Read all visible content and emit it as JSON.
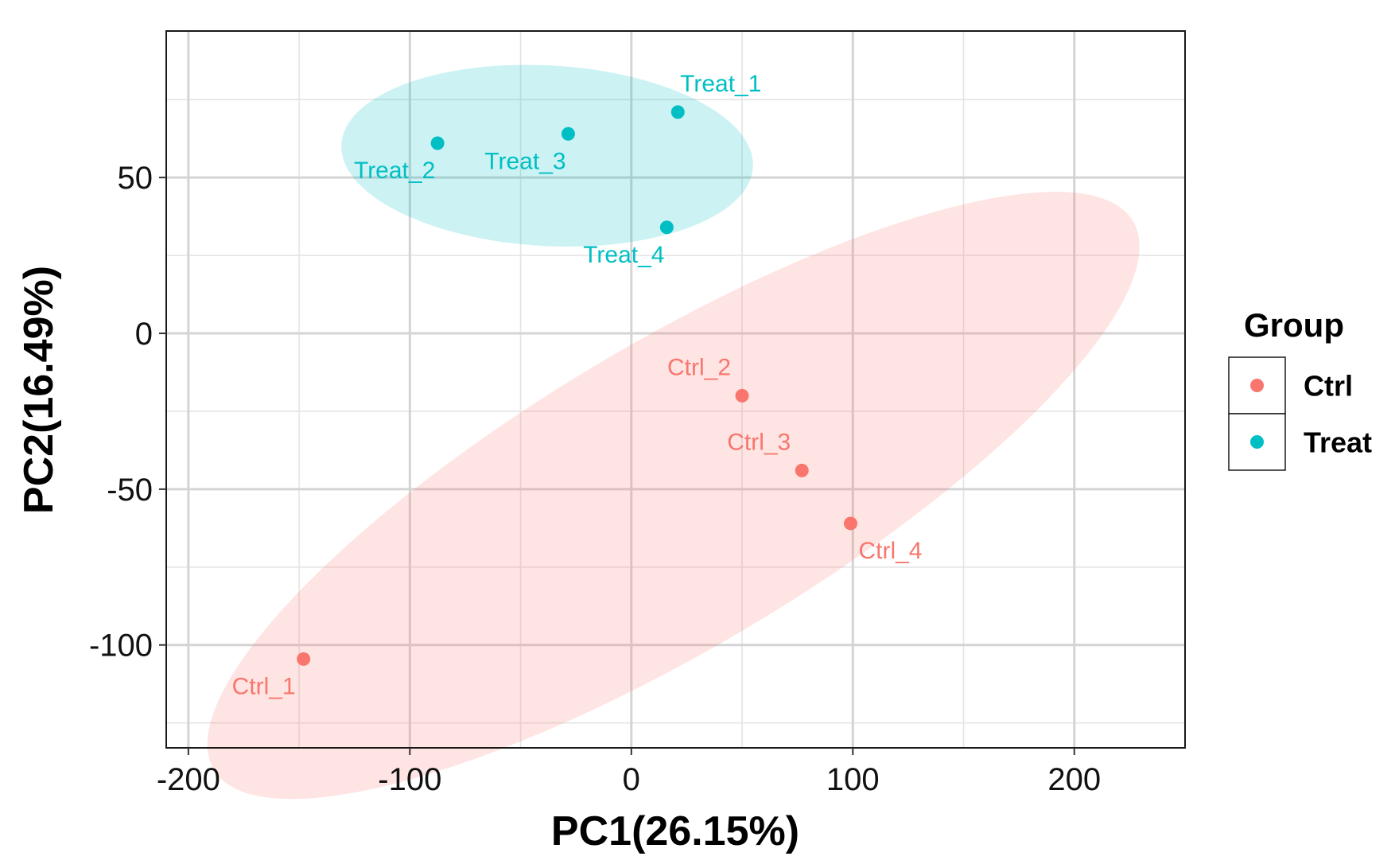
{
  "chart_data": {
    "type": "scatter",
    "title": "",
    "xlabel": "PC1(26.15%)",
    "ylabel": "PC2(16.49%)",
    "xlim": [
      -210,
      250
    ],
    "ylim": [
      -133,
      97
    ],
    "xticks": [
      -200,
      -100,
      0,
      100,
      200
    ],
    "yticks": [
      -100,
      -50,
      0,
      50
    ],
    "xtick_labels": [
      "-200",
      "-100",
      "0",
      "100",
      "200"
    ],
    "ytick_labels": [
      "-100",
      "-50",
      "0",
      "50"
    ],
    "grid": true,
    "legend": {
      "title": "Group",
      "position": "right",
      "entries": [
        {
          "name": "Ctrl",
          "color": "#F8766D"
        },
        {
          "name": "Treat",
          "color": "#00BFC4"
        }
      ]
    },
    "series": [
      {
        "name": "Ctrl",
        "color": "#F8766D",
        "points": [
          {
            "label": "Ctrl_1",
            "x": -148,
            "y": -104.5
          },
          {
            "label": "Ctrl_2",
            "x": 50,
            "y": -20
          },
          {
            "label": "Ctrl_3",
            "x": 77,
            "y": -44
          },
          {
            "label": "Ctrl_4",
            "x": 99,
            "y": -61
          }
        ],
        "ellipse": {
          "cx": 19,
          "cy": -52,
          "rx": 226,
          "ry": 52,
          "angle_deg": 22
        }
      },
      {
        "name": "Treat",
        "color": "#00BFC4",
        "points": [
          {
            "label": "Treat_1",
            "x": 21,
            "y": 71
          },
          {
            "label": "Treat_2",
            "x": -87.5,
            "y": 61
          },
          {
            "label": "Treat_3",
            "x": -28.5,
            "y": 64
          },
          {
            "label": "Treat_4",
            "x": 16,
            "y": 34
          }
        ],
        "ellipse": {
          "cx": -38,
          "cy": 57,
          "rx": 93,
          "ry": 29,
          "angle_deg": -2
        }
      }
    ]
  }
}
